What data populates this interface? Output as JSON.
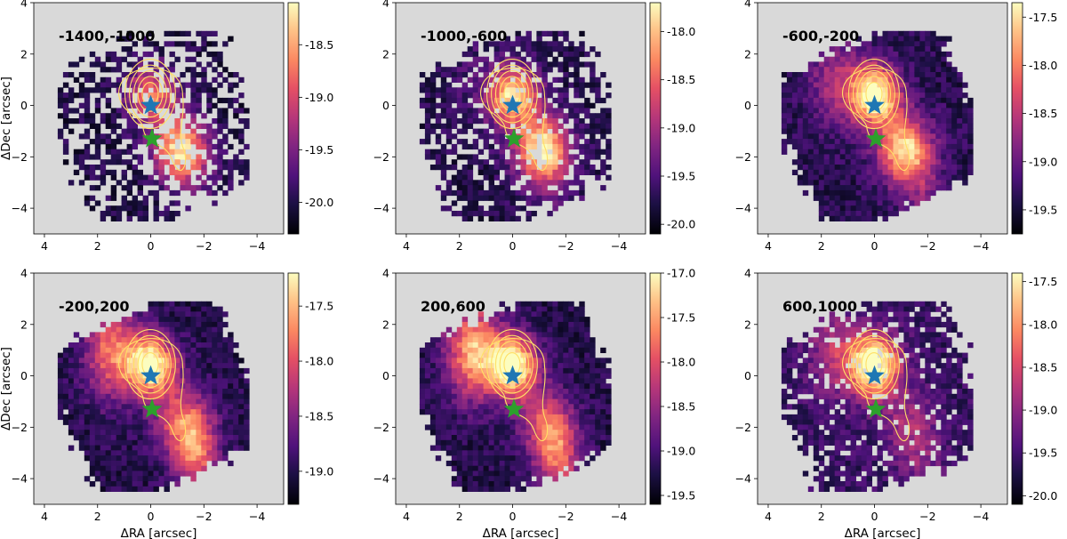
{
  "chart_data": [
    {
      "type": "heatmap",
      "title": "-1400,-1000",
      "xlabel": "",
      "ylabel": "ΔDec [arcsec]",
      "xticks": [
        "4",
        "2",
        "0",
        "−2",
        "−4"
      ],
      "yticks": [
        "4",
        "2",
        "0",
        "−2",
        "−4"
      ],
      "colorbar_ticks": [
        "-18.5",
        "-19.0",
        "-19.5",
        "-20.0"
      ],
      "colorbar_range": [
        -20.3,
        -18.1
      ],
      "xlim": [
        4.4,
        -5.0
      ],
      "ylim": [
        -5.0,
        4.0
      ]
    },
    {
      "type": "heatmap",
      "title": "-1000,-600",
      "xlabel": "",
      "ylabel": "",
      "xticks": [
        "4",
        "2",
        "0",
        "−2",
        "−4"
      ],
      "yticks": [
        "4",
        "2",
        "0",
        "−2",
        "−4"
      ],
      "colorbar_ticks": [
        "-18.0",
        "-18.5",
        "-19.0",
        "-19.5",
        "-20.0"
      ],
      "colorbar_range": [
        -20.1,
        -17.7
      ],
      "xlim": [
        4.4,
        -5.0
      ],
      "ylim": [
        -5.0,
        4.0
      ]
    },
    {
      "type": "heatmap",
      "title": "-600,-200",
      "xlabel": "",
      "ylabel": "",
      "xticks": [
        "4",
        "2",
        "0",
        "−2",
        "−4"
      ],
      "yticks": [
        "4",
        "2",
        "0",
        "−2",
        "−4"
      ],
      "colorbar_ticks": [
        "-17.5",
        "-18.0",
        "-18.5",
        "-19.0",
        "-19.5"
      ],
      "colorbar_range": [
        -19.75,
        -17.35
      ],
      "xlim": [
        4.4,
        -5.0
      ],
      "ylim": [
        -5.0,
        4.0
      ]
    },
    {
      "type": "heatmap",
      "title": "-200,200",
      "xlabel": "ΔRA [arcsec]",
      "ylabel": "ΔDec [arcsec]",
      "xticks": [
        "4",
        "2",
        "0",
        "−2",
        "−4"
      ],
      "yticks": [
        "4",
        "2",
        "0",
        "−2",
        "−4"
      ],
      "colorbar_ticks": [
        "-17.5",
        "-18.0",
        "-18.5",
        "-19.0"
      ],
      "colorbar_range": [
        -19.3,
        -17.2
      ],
      "xlim": [
        4.4,
        -5.0
      ],
      "ylim": [
        -5.0,
        4.0
      ]
    },
    {
      "type": "heatmap",
      "title": "200,600",
      "xlabel": "ΔRA [arcsec]",
      "ylabel": "",
      "xticks": [
        "4",
        "2",
        "0",
        "−2",
        "−4"
      ],
      "yticks": [
        "4",
        "2",
        "0",
        "−2",
        "−4"
      ],
      "colorbar_ticks": [
        "-17.0",
        "-17.5",
        "-18.0",
        "-18.5",
        "-19.0",
        "-19.5"
      ],
      "colorbar_range": [
        -19.6,
        -17.0
      ],
      "xlim": [
        4.4,
        -5.0
      ],
      "ylim": [
        -5.0,
        4.0
      ]
    },
    {
      "type": "heatmap",
      "title": "600,1000",
      "xlabel": "ΔRA [arcsec]",
      "ylabel": "",
      "xticks": [
        "4",
        "2",
        "0",
        "−2",
        "−4"
      ],
      "yticks": [
        "4",
        "2",
        "0",
        "−2",
        "−4"
      ],
      "colorbar_ticks": [
        "-17.5",
        "-18.0",
        "-18.5",
        "-19.0",
        "-19.5",
        "-20.0"
      ],
      "colorbar_range": [
        -20.1,
        -17.4
      ],
      "xlim": [
        4.4,
        -5.0
      ],
      "ylim": [
        -5.0,
        4.0
      ]
    }
  ],
  "markers": [
    {
      "name": "blue-star",
      "ra": 0.0,
      "dec": 0.0,
      "color": "#1f77b4"
    },
    {
      "name": "green-star",
      "ra": -0.05,
      "dec": -1.3,
      "color": "#2ca02c"
    }
  ],
  "colors": {
    "background_mask": "#d9d9d9",
    "contour": "#ffe066",
    "colormap": "magma"
  }
}
